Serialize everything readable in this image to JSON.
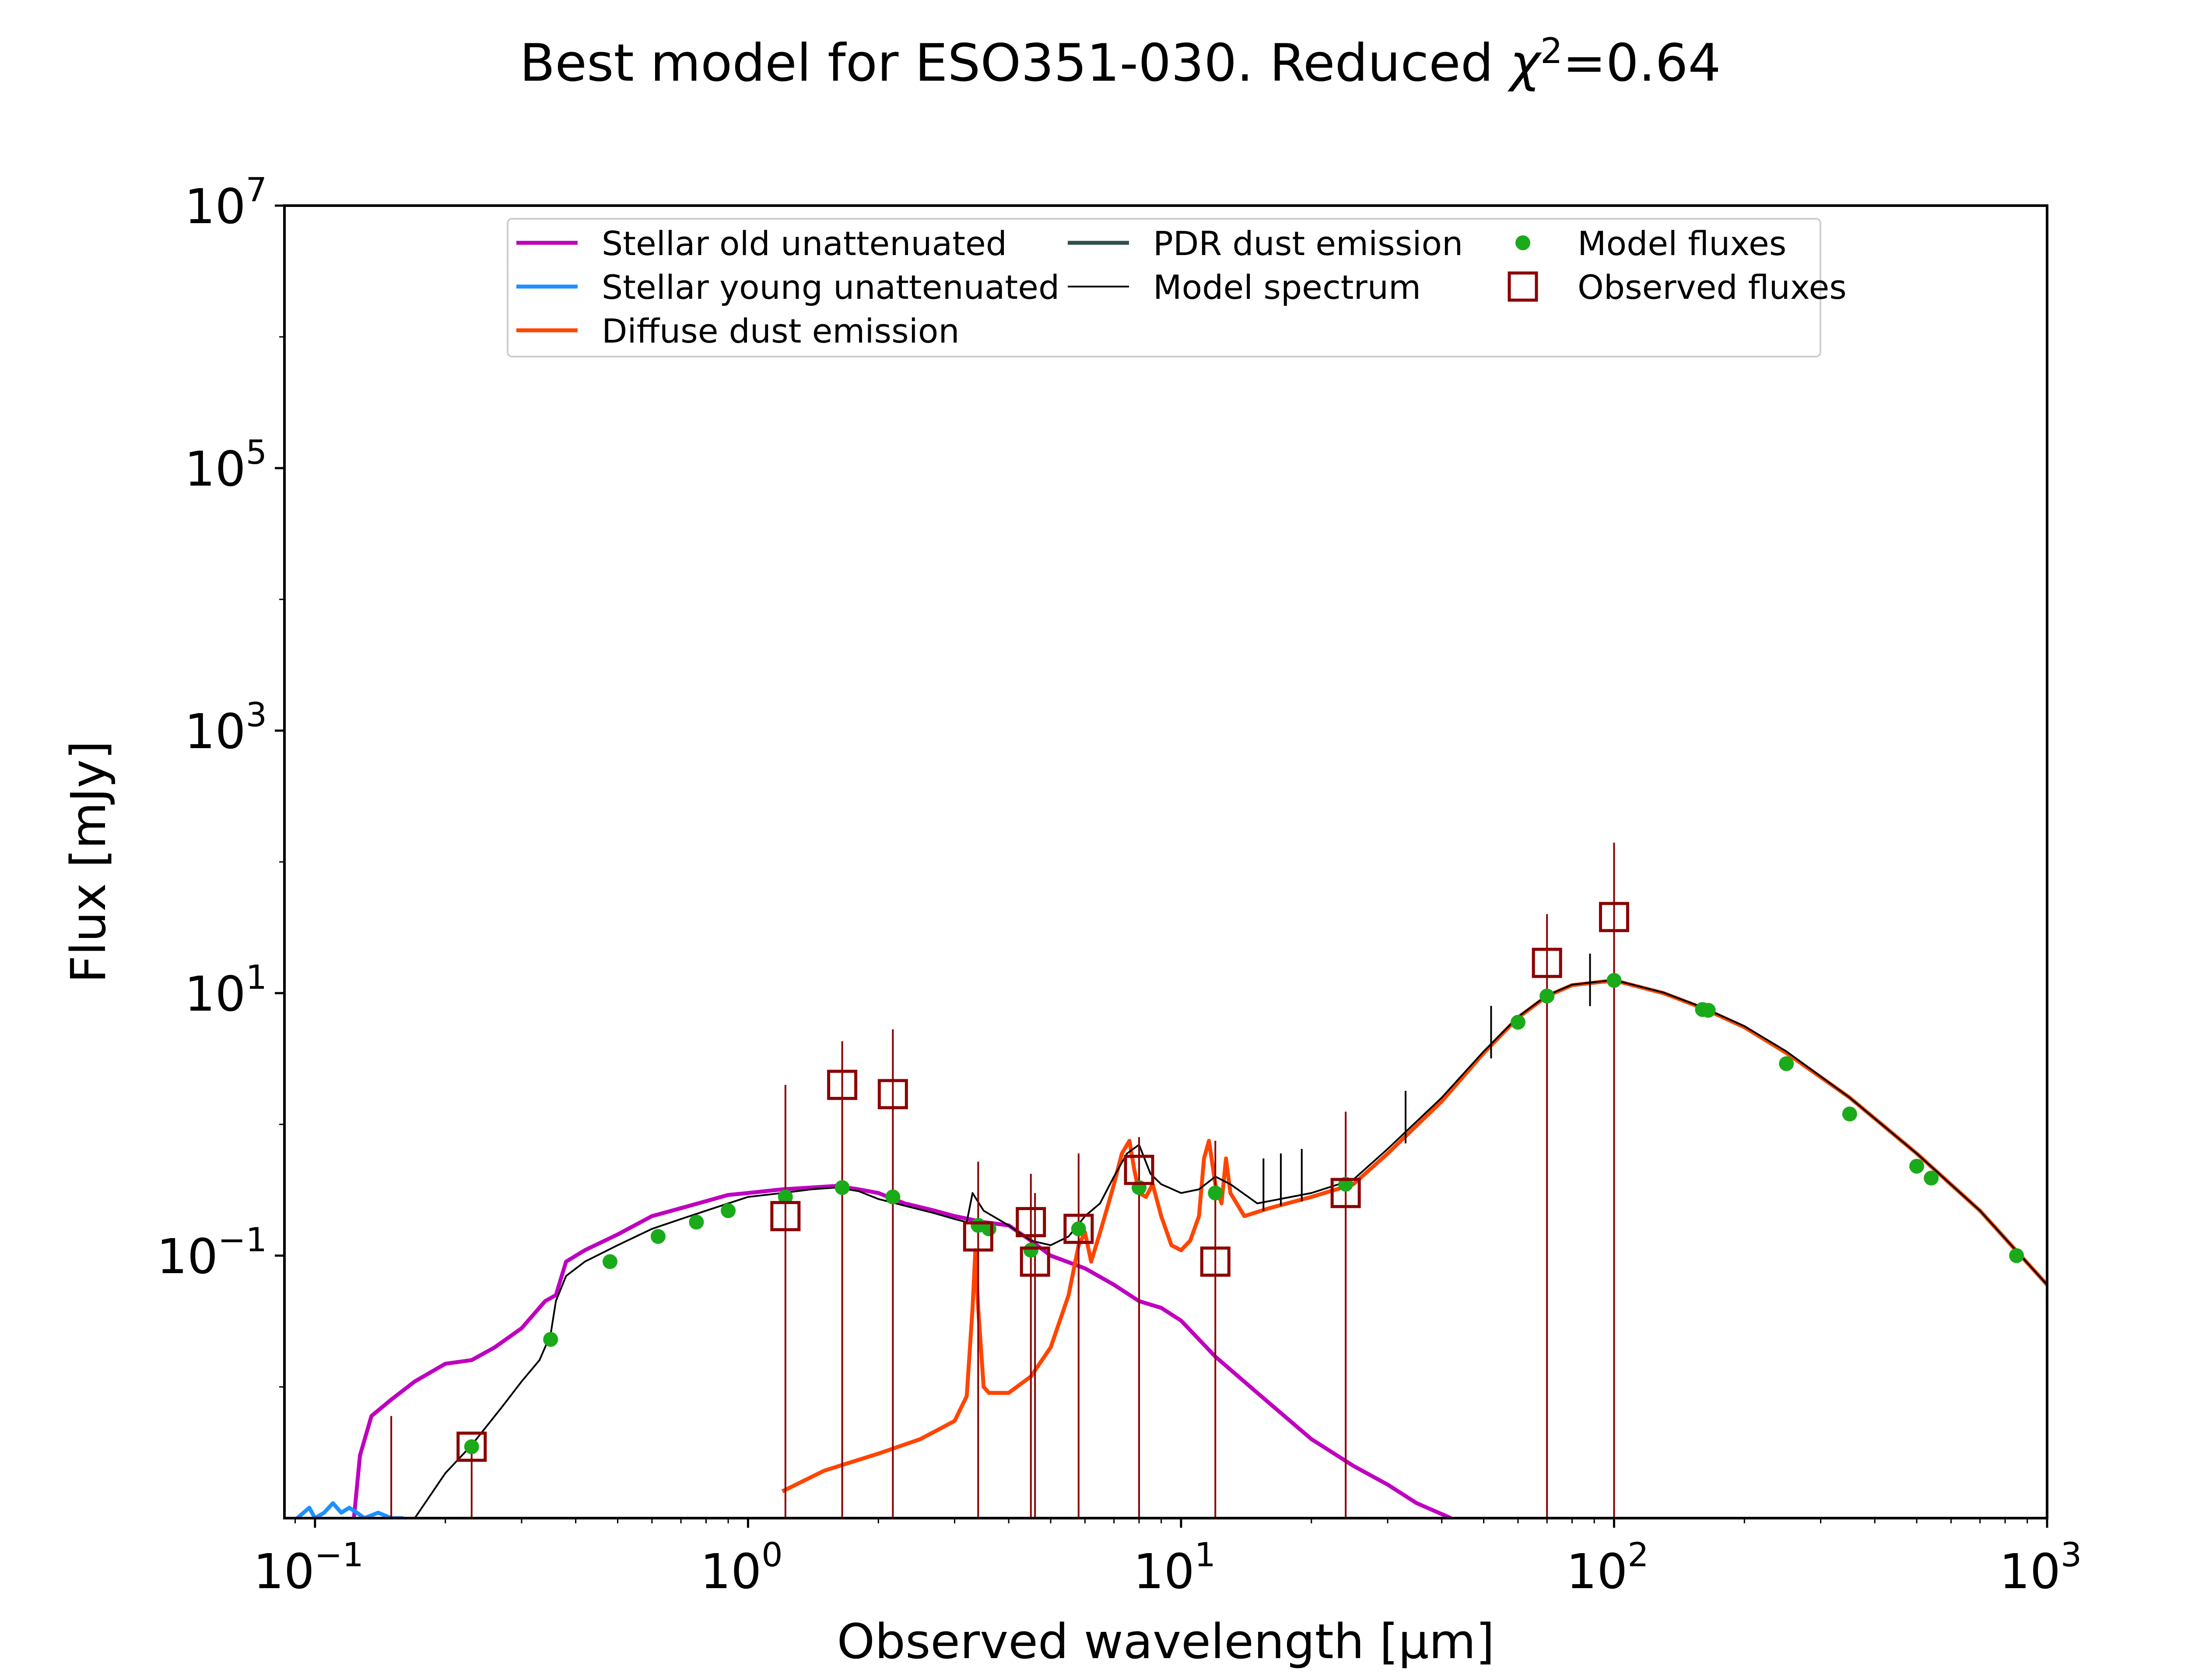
{
  "chart_data": {
    "type": "line",
    "title_prefix": "Best model for ESO351-030. Reduced ",
    "title_chi": "χ",
    "title_exp": "2",
    "title_value": "=0.64",
    "xlabel": "Observed wavelength [μm]",
    "ylabel": "Flux [mJy]",
    "x_scale": "log",
    "y_scale": "log",
    "xlim": [
      0.085,
      1000
    ],
    "ylim": [
      0.001,
      10000000
    ],
    "x_ticks": [
      {
        "base": "10",
        "exp": "−1"
      },
      {
        "base": "10",
        "exp": "0"
      },
      {
        "base": "10",
        "exp": "1"
      },
      {
        "base": "10",
        "exp": "2"
      },
      {
        "base": "10",
        "exp": "3"
      }
    ],
    "y_ticks": [
      {
        "base": "10",
        "exp": "−1"
      },
      {
        "base": "10",
        "exp": "1"
      },
      {
        "base": "10",
        "exp": "3"
      },
      {
        "base": "10",
        "exp": "5"
      },
      {
        "base": "10",
        "exp": "7"
      }
    ],
    "legend_position": "top",
    "legend": [
      {
        "label": "Stellar old unattenuated",
        "color": "#bf00bf",
        "kind": "line"
      },
      {
        "label": "Stellar young unattenuated",
        "color": "#1e90ff",
        "kind": "line"
      },
      {
        "label": "Diffuse dust emission",
        "color": "#ff4500",
        "kind": "line"
      },
      {
        "label": "PDR dust emission",
        "color": "#2f4f4f",
        "kind": "line"
      },
      {
        "label": "Model spectrum",
        "color": "#000000",
        "kind": "thinline"
      },
      {
        "label": "Model fluxes",
        "color": "#1aaa1a",
        "kind": "dot"
      },
      {
        "label": "Observed fluxes",
        "color": "#8b0000",
        "kind": "square"
      }
    ],
    "series": [
      {
        "name": "Stellar old unattenuated",
        "color": "#bf00bf",
        "x": [
          0.123,
          0.127,
          0.135,
          0.15,
          0.17,
          0.2,
          0.23,
          0.26,
          0.3,
          0.34,
          0.36,
          0.38,
          0.42,
          0.5,
          0.6,
          0.7,
          0.8,
          0.9,
          1.0,
          1.2,
          1.4,
          1.6,
          1.8,
          2.0,
          2.3,
          2.7,
          3.0,
          3.5,
          4.0,
          4.5,
          5.0,
          6.0,
          7.0,
          8.0,
          9.0,
          10.0,
          12.0,
          15.0,
          20.0,
          25.0,
          30.0,
          35.0,
          42.0
        ],
        "y": [
          0.001,
          0.003,
          0.006,
          0.008,
          0.011,
          0.015,
          0.016,
          0.02,
          0.028,
          0.045,
          0.05,
          0.09,
          0.11,
          0.145,
          0.2,
          0.23,
          0.26,
          0.29,
          0.3,
          0.32,
          0.33,
          0.34,
          0.32,
          0.3,
          0.25,
          0.22,
          0.2,
          0.18,
          0.17,
          0.13,
          0.1,
          0.08,
          0.06,
          0.045,
          0.04,
          0.032,
          0.017,
          0.009,
          0.004,
          0.0025,
          0.0018,
          0.0013,
          0.001
        ]
      },
      {
        "name": "Stellar young unattenuated",
        "color": "#1e90ff",
        "x": [
          0.091,
          0.097,
          0.1,
          0.105,
          0.11,
          0.115,
          0.12,
          0.125,
          0.13,
          0.14,
          0.15,
          0.16
        ],
        "y": [
          0.001,
          0.0012,
          0.001,
          0.0011,
          0.0013,
          0.0011,
          0.0012,
          0.0011,
          0.001,
          0.0011,
          0.001,
          0.001
        ]
      },
      {
        "name": "Diffuse dust emission",
        "color": "#ff4500",
        "x": [
          1.2,
          1.5,
          2.0,
          2.5,
          3.0,
          3.2,
          3.3,
          3.35,
          3.4,
          3.5,
          3.6,
          4.0,
          4.5,
          5.0,
          5.5,
          5.8,
          6.0,
          6.2,
          6.5,
          6.8,
          7.0,
          7.3,
          7.6,
          7.8,
          8.0,
          8.3,
          8.6,
          9.0,
          9.5,
          10.0,
          10.5,
          11.0,
          11.3,
          11.6,
          12.0,
          12.4,
          12.7,
          13.0,
          14.0,
          16.0,
          20.0,
          25.0,
          30.0,
          40.0,
          50.0,
          60.0,
          70.0,
          80.0,
          100.0,
          130.0,
          160.0,
          200.0,
          250.0,
          350.0,
          500.0,
          700.0,
          1000.0
        ],
        "y": [
          0.0016,
          0.0023,
          0.0031,
          0.004,
          0.0055,
          0.0085,
          0.04,
          0.11,
          0.04,
          0.01,
          0.009,
          0.009,
          0.012,
          0.02,
          0.05,
          0.12,
          0.15,
          0.09,
          0.15,
          0.25,
          0.35,
          0.6,
          0.75,
          0.45,
          0.3,
          0.28,
          0.35,
          0.2,
          0.12,
          0.11,
          0.13,
          0.2,
          0.55,
          0.75,
          0.35,
          0.25,
          0.55,
          0.3,
          0.2,
          0.23,
          0.28,
          0.35,
          0.6,
          1.5,
          3.5,
          6.5,
          9.5,
          11.5,
          12.5,
          10.0,
          7.7,
          5.5,
          3.5,
          1.6,
          0.6,
          0.22,
          0.06
        ]
      },
      {
        "name": "Model spectrum",
        "color": "#000000",
        "x": [
          0.17,
          0.2,
          0.23,
          0.27,
          0.3,
          0.33,
          0.35,
          0.36,
          0.38,
          0.42,
          0.5,
          0.6,
          0.7,
          0.8,
          0.9,
          1.0,
          1.2,
          1.4,
          1.6,
          1.8,
          2.0,
          2.3,
          2.7,
          3.0,
          3.2,
          3.3,
          3.5,
          4.0,
          4.5,
          5.0,
          5.5,
          6.0,
          6.5,
          7.0,
          7.5,
          8.0,
          8.5,
          9.0,
          10.0,
          11.0,
          12.0,
          13.0,
          15.0,
          20.0,
          25.0,
          30.0,
          40.0,
          50.0,
          60.0,
          70.0,
          80.0,
          100.0,
          130.0,
          160.0,
          200.0,
          250.0,
          350.0,
          500.0,
          700.0,
          1000.0
        ],
        "y": [
          0.001,
          0.0022,
          0.0036,
          0.007,
          0.011,
          0.016,
          0.025,
          0.045,
          0.07,
          0.09,
          0.12,
          0.16,
          0.19,
          0.22,
          0.25,
          0.28,
          0.3,
          0.32,
          0.33,
          0.31,
          0.27,
          0.24,
          0.21,
          0.19,
          0.18,
          0.3,
          0.22,
          0.17,
          0.13,
          0.12,
          0.14,
          0.2,
          0.25,
          0.4,
          0.6,
          0.7,
          0.42,
          0.35,
          0.3,
          0.32,
          0.4,
          0.35,
          0.25,
          0.3,
          0.38,
          0.65,
          1.6,
          3.6,
          6.6,
          9.6,
          11.6,
          12.6,
          10.1,
          7.8,
          5.6,
          3.6,
          1.6,
          0.6,
          0.22,
          0.06
        ]
      }
    ],
    "pdr_lines": [
      {
        "x": 15.5,
        "y": 0.55
      },
      {
        "x": 17.0,
        "y": 0.6
      },
      {
        "x": 19.0,
        "y": 0.65
      },
      {
        "x": 33.0,
        "y": 1.8
      },
      {
        "x": 52.0,
        "y": 8.0
      },
      {
        "x": 88.0,
        "y": 20.0
      }
    ],
    "model_fluxes": {
      "color": "#1aaa1a",
      "x": [
        0.23,
        0.35,
        0.48,
        0.62,
        0.76,
        0.9,
        1.22,
        1.65,
        2.16,
        3.4,
        3.6,
        4.5,
        5.8,
        8.0,
        12.0,
        24.0,
        60.0,
        70.0,
        100.0,
        160.0,
        165.0,
        250.0,
        350.0,
        500.0,
        540.0,
        850.0
      ],
      "y": [
        0.0035,
        0.023,
        0.09,
        0.14,
        0.18,
        0.22,
        0.28,
        0.33,
        0.28,
        0.17,
        0.16,
        0.11,
        0.16,
        0.33,
        0.3,
        0.35,
        6.0,
        9.5,
        12.5,
        7.5,
        7.4,
        2.9,
        1.2,
        0.48,
        0.39,
        0.1
      ]
    },
    "observed_fluxes": {
      "color": "#8b0000",
      "x": [
        0.23,
        1.22,
        1.65,
        2.16,
        3.4,
        4.5,
        4.6,
        5.8,
        8.0,
        12.0,
        24.0,
        70.0,
        100.0
      ],
      "y": [
        0.0035,
        0.2,
        2.0,
        1.7,
        0.14,
        0.18,
        0.09,
        0.16,
        0.45,
        0.09,
        0.3,
        17.0,
        38.0
      ],
      "err_top": [
        0.0035,
        2.0,
        4.3,
        5.3,
        0.52,
        0.42,
        0.3,
        0.6,
        0.8,
        0.75,
        1.25,
        40.0,
        140.0
      ]
    },
    "extra_errorbars": [
      {
        "x": 0.15,
        "top": 0.006
      }
    ]
  }
}
